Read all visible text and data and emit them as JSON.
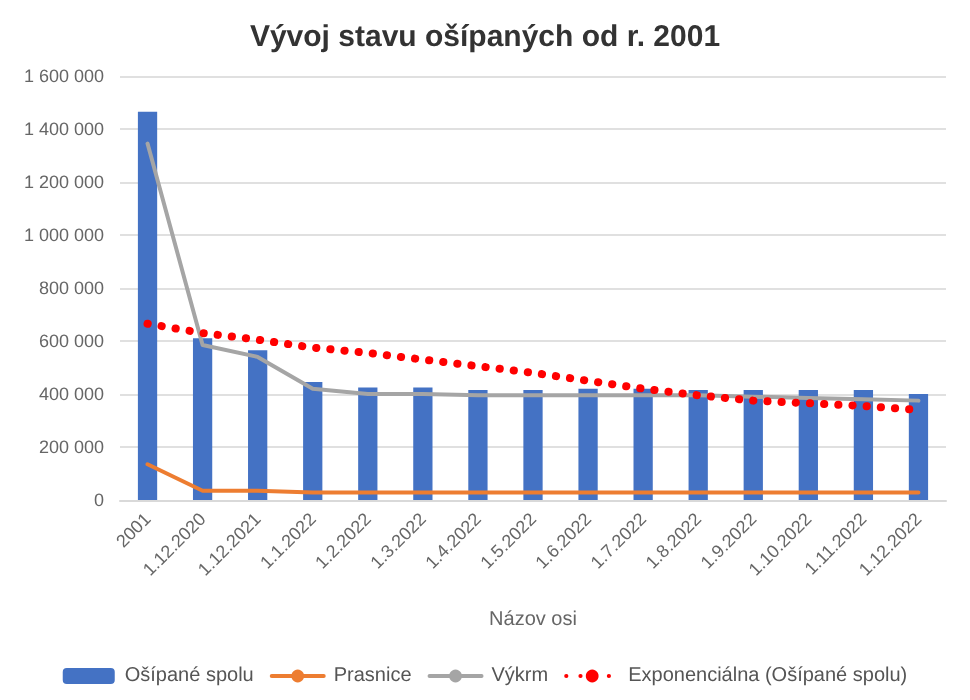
{
  "chart_data": {
    "type": "bar",
    "title": "Vývoj stavu ošípaných od r. 2001",
    "xlabel": "Názov osi",
    "categories": [
      "2001",
      "1.12.2020",
      "1.12.2021",
      "1.1.2022",
      "1.2.2022",
      "1.3.2022",
      "1.4.2022",
      "1.5.2022",
      "1.6.2022",
      "1.7.2022",
      "1.8.2022",
      "1.9.2022",
      "1.10.2022",
      "1.11.2022",
      "1.12.2022"
    ],
    "series": [
      {
        "name": "Ošípané spolu",
        "color": "#4472c4",
        "values": [
          1465000,
          610000,
          565000,
          445000,
          425000,
          425000,
          415000,
          415000,
          420000,
          420000,
          415000,
          415000,
          415000,
          415000,
          400000
        ]
      },
      {
        "name": "Prasnice",
        "type": "line",
        "color": "#ed7d31",
        "line_style": "solid",
        "values": [
          135000,
          35000,
          35000,
          28000,
          28000,
          28000,
          28000,
          28000,
          28000,
          28000,
          28000,
          28000,
          28000,
          28000,
          28000
        ]
      },
      {
        "name": "Výkrm",
        "type": "line",
        "color": "#a5a5a5",
        "line_style": "solid",
        "values": [
          1345000,
          585000,
          540000,
          420000,
          400000,
          400000,
          395000,
          395000,
          395000,
          395000,
          395000,
          390000,
          385000,
          380000,
          375000
        ]
      },
      {
        "name": "Exponenciálna (Ošípané spolu)",
        "type": "line",
        "color": "#ff0000",
        "line_style": "dotted",
        "values": [
          665000,
          630000,
          605000,
          575000,
          555000,
          530000,
          505000,
          480000,
          450000,
          420000,
          395000,
          375000,
          365000,
          355000,
          340000
        ]
      }
    ],
    "ylim": [
      0,
      1600000
    ],
    "yticks": [
      {
        "value": 0,
        "label": "0"
      },
      {
        "value": 200000,
        "label": "200 000"
      },
      {
        "value": 400000,
        "label": "400 000"
      },
      {
        "value": 600000,
        "label": "600 000"
      },
      {
        "value": 800000,
        "label": "800 000"
      },
      {
        "value": 1000000,
        "label": "1 000 000"
      },
      {
        "value": 1200000,
        "label": "1 200 000"
      },
      {
        "value": 1400000,
        "label": "1 400 000"
      },
      {
        "value": 1600000,
        "label": "1 600 000"
      }
    ],
    "grid": "y",
    "legend": "bottom",
    "marker": "none"
  }
}
